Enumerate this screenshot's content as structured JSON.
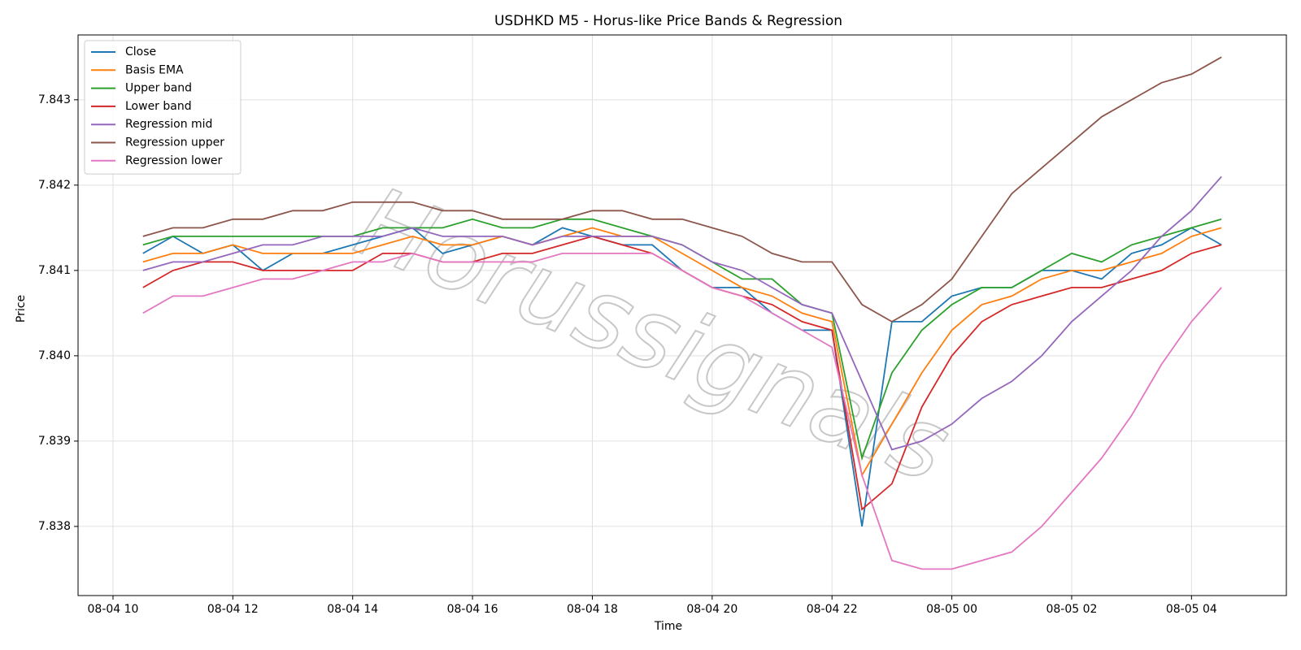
{
  "chart_data": {
    "type": "line",
    "title": "USDHKD M5 - Horus-like Price Bands & Regression",
    "x_label": "Time",
    "y_label": "Price",
    "watermark": "Horussignals",
    "grid": true,
    "legend": "upper left",
    "xlim": [
      "08-04 09:25",
      "08-05 05:35"
    ],
    "xticks": [
      {
        "value": "08-04 10:00",
        "label": "08-04 10"
      },
      {
        "value": "08-04 12:00",
        "label": "08-04 12"
      },
      {
        "value": "08-04 14:00",
        "label": "08-04 14"
      },
      {
        "value": "08-04 16:00",
        "label": "08-04 16"
      },
      {
        "value": "08-04 18:00",
        "label": "08-04 18"
      },
      {
        "value": "08-04 20:00",
        "label": "08-04 20"
      },
      {
        "value": "08-04 22:00",
        "label": "08-04 22"
      },
      {
        "value": "08-05 00:00",
        "label": "08-05 00"
      },
      {
        "value": "08-05 02:00",
        "label": "08-05 02"
      },
      {
        "value": "08-05 04:00",
        "label": "08-05 04"
      }
    ],
    "ylim": [
      7.83719,
      7.84376
    ],
    "yticks": [
      7.838,
      7.839,
      {
        "value": 7.84,
        "label": "7.840"
      },
      7.841,
      7.842,
      7.843
    ],
    "x": [
      "08-04 10:30",
      "08-04 11:00",
      "08-04 11:30",
      "08-04 12:00",
      "08-04 12:30",
      "08-04 13:00",
      "08-04 13:30",
      "08-04 14:00",
      "08-04 14:30",
      "08-04 15:00",
      "08-04 15:30",
      "08-04 16:00",
      "08-04 16:30",
      "08-04 17:00",
      "08-04 17:30",
      "08-04 18:00",
      "08-04 18:30",
      "08-04 19:00",
      "08-04 19:30",
      "08-04 20:00",
      "08-04 20:30",
      "08-04 21:00",
      "08-04 21:30",
      "08-04 22:00",
      "08-04 22:30",
      "08-04 23:00",
      "08-04 23:30",
      "08-05 00:00",
      "08-05 00:30",
      "08-05 01:00",
      "08-05 01:30",
      "08-05 02:00",
      "08-05 02:30",
      "08-05 03:00",
      "08-05 03:30",
      "08-05 04:00",
      "08-05 04:30"
    ],
    "series": [
      {
        "name": "Close",
        "color": "#1f77b4",
        "values": [
          7.8412,
          7.8414,
          7.8412,
          7.8413,
          7.841,
          7.8412,
          7.8412,
          7.8413,
          7.8414,
          7.8415,
          7.8412,
          7.8413,
          7.8414,
          7.8413,
          7.8415,
          7.8414,
          7.8413,
          7.8413,
          7.841,
          7.8408,
          7.8408,
          7.8405,
          7.8403,
          7.8403,
          7.838,
          7.8404,
          7.8404,
          7.8407,
          7.8408,
          7.8408,
          7.841,
          7.841,
          7.8409,
          7.8412,
          7.8413,
          7.8415,
          7.8413
        ]
      },
      {
        "name": "Basis EMA",
        "color": "#ff7f0e",
        "values": [
          7.8411,
          7.8412,
          7.8412,
          7.8413,
          7.8412,
          7.8412,
          7.8412,
          7.8412,
          7.8413,
          7.8414,
          7.8413,
          7.8413,
          7.8414,
          7.8413,
          7.8414,
          7.8415,
          7.8414,
          7.8414,
          7.8412,
          7.841,
          7.8408,
          7.8407,
          7.8405,
          7.8404,
          7.8386,
          7.8392,
          7.8398,
          7.8403,
          7.8406,
          7.8407,
          7.8409,
          7.841,
          7.841,
          7.8411,
          7.8412,
          7.8414,
          7.8415
        ]
      },
      {
        "name": "Upper band",
        "color": "#2ca02c",
        "values": [
          7.8413,
          7.8414,
          7.8414,
          7.8414,
          7.8414,
          7.8414,
          7.8414,
          7.8414,
          7.8415,
          7.8415,
          7.8415,
          7.8416,
          7.8415,
          7.8415,
          7.8416,
          7.8416,
          7.8415,
          7.8414,
          7.8413,
          7.8411,
          7.8409,
          7.8409,
          7.8406,
          7.8405,
          7.8388,
          7.8398,
          7.8403,
          7.8406,
          7.8408,
          7.8408,
          7.841,
          7.8412,
          7.8411,
          7.8413,
          7.8414,
          7.8415,
          7.8416
        ]
      },
      {
        "name": "Lower band",
        "color": "#d62728",
        "values": [
          7.8408,
          7.841,
          7.8411,
          7.8411,
          7.841,
          7.841,
          7.841,
          7.841,
          7.8412,
          7.8412,
          7.8411,
          7.8411,
          7.8412,
          7.8412,
          7.8413,
          7.8414,
          7.8413,
          7.8412,
          7.841,
          7.8408,
          7.8407,
          7.8406,
          7.8404,
          7.8403,
          7.8382,
          7.8385,
          7.8394,
          7.84,
          7.8404,
          7.8406,
          7.8407,
          7.8408,
          7.8408,
          7.8409,
          7.841,
          7.8412,
          7.8413
        ]
      },
      {
        "name": "Regression mid",
        "color": "#9467bd",
        "values": [
          7.841,
          7.8411,
          7.8411,
          7.8412,
          7.8413,
          7.8413,
          7.8414,
          7.8414,
          7.8414,
          7.8415,
          7.8414,
          7.8414,
          7.8414,
          7.8413,
          7.8414,
          7.8414,
          7.8414,
          7.8414,
          7.8413,
          7.8411,
          7.841,
          7.8408,
          7.8406,
          7.8405,
          7.8397,
          7.8389,
          7.839,
          7.8392,
          7.8395,
          7.8397,
          7.84,
          7.8404,
          7.8407,
          7.841,
          7.8414,
          7.8417,
          7.8421
        ]
      },
      {
        "name": "Regression upper",
        "color": "#8c564b",
        "values": [
          7.8414,
          7.8415,
          7.8415,
          7.8416,
          7.8416,
          7.8417,
          7.8417,
          7.8418,
          7.8418,
          7.8418,
          7.8417,
          7.8417,
          7.8416,
          7.8416,
          7.8416,
          7.8417,
          7.8417,
          7.8416,
          7.8416,
          7.8415,
          7.8414,
          7.8412,
          7.8411,
          7.8411,
          7.8406,
          7.8404,
          7.8406,
          7.8409,
          7.8414,
          7.8419,
          7.8422,
          7.8425,
          7.8428,
          7.843,
          7.8432,
          7.8433,
          7.8435
        ]
      },
      {
        "name": "Regression lower",
        "color": "#e377c2",
        "values": [
          7.8405,
          7.8407,
          7.8407,
          7.8408,
          7.8409,
          7.8409,
          7.841,
          7.8411,
          7.8411,
          7.8412,
          7.8411,
          7.8411,
          7.8411,
          7.8411,
          7.8412,
          7.8412,
          7.8412,
          7.8412,
          7.841,
          7.8408,
          7.8407,
          7.8405,
          7.8403,
          7.8401,
          7.8386,
          7.8376,
          7.8375,
          7.8375,
          7.8376,
          7.8377,
          7.838,
          7.8384,
          7.8388,
          7.8393,
          7.8399,
          7.8404,
          7.8408
        ]
      }
    ]
  }
}
